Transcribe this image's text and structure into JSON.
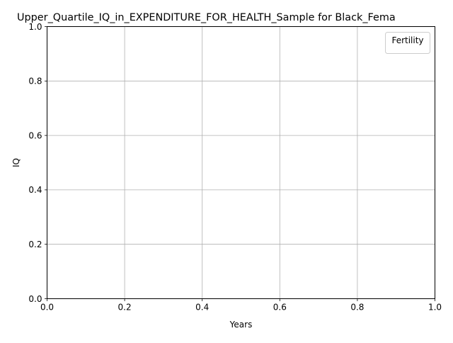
{
  "chart_data": {
    "type": "line",
    "title": "Upper_Quartile_IQ_in_EXPENDITURE_FOR_HEALTH_Sample for Black_Fema",
    "xlabel": "Years",
    "ylabel": "IQ",
    "xlim": [
      0.0,
      1.0
    ],
    "ylim": [
      0.0,
      1.0
    ],
    "xticks": [
      "0.0",
      "0.2",
      "0.4",
      "0.6",
      "0.8",
      "1.0"
    ],
    "yticks": [
      "0.0",
      "0.2",
      "0.4",
      "0.6",
      "0.8",
      "1.0"
    ],
    "grid": true,
    "legend": {
      "title": "Fertility",
      "placement": "top-right",
      "entries": []
    },
    "series": []
  }
}
